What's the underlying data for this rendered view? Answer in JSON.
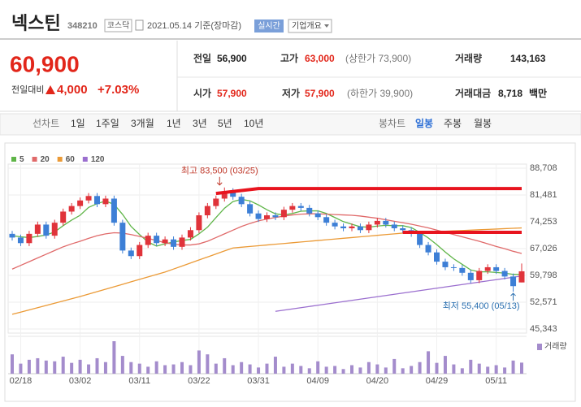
{
  "header": {
    "name": "넥스틴",
    "code": "348210",
    "market": "코스닥",
    "date": "2021.05.14 기준(장마감)",
    "realtime": "실시간",
    "overview": "기업개요"
  },
  "quote": {
    "price": "60,900",
    "change_label": "전일대비",
    "change": "4,000",
    "change_pct": "+7.03%",
    "stats": [
      [
        {
          "label": "전일",
          "value": "56,900"
        },
        {
          "label": "고가",
          "value": "63,000",
          "note": "(상한가 73,900)"
        },
        {
          "label": "거래량",
          "value": "143,163"
        }
      ],
      [
        {
          "label": "시가",
          "value": "57,900"
        },
        {
          "label": "저가",
          "value": "57,900",
          "note": "(하한가 39,900)"
        },
        {
          "label": "거래대금",
          "value": "8,718",
          "unit": "백만"
        }
      ]
    ]
  },
  "tabs": {
    "line_label": "선차트",
    "periods": [
      "1일",
      "1주일",
      "3개월",
      "1년",
      "3년",
      "5년",
      "10년"
    ],
    "candle_label": "봉차트",
    "candle_periods": [
      "일봉",
      "주봉",
      "월봉"
    ]
  },
  "chart_data": {
    "type": "candlestick",
    "up_color": "#e0333a",
    "down_color": "#3d7fd6",
    "grid": true,
    "categories": [
      null,
      "02/18",
      null,
      null,
      null,
      null,
      null,
      null,
      "03/02",
      null,
      null,
      null,
      null,
      null,
      null,
      "03/11",
      null,
      null,
      null,
      null,
      null,
      null,
      "03/22",
      null,
      null,
      null,
      null,
      null,
      null,
      "03/31",
      null,
      null,
      null,
      null,
      null,
      null,
      "04/09",
      null,
      null,
      null,
      null,
      null,
      null,
      "04/20",
      null,
      null,
      null,
      null,
      null,
      null,
      "04/29",
      null,
      null,
      null,
      null,
      null,
      null,
      "05/11",
      null,
      null,
      null
    ],
    "open": [
      71000,
      70000,
      68500,
      71000,
      73500,
      70500,
      74000,
      77000,
      78500,
      80000,
      81200,
      79000,
      80500,
      74000,
      66500,
      65000,
      68000,
      70500,
      68500,
      69500,
      67500,
      70000,
      72000,
      76000,
      78500,
      80500,
      82500,
      81000,
      79000,
      76500,
      75000,
      76000,
      75500,
      77500,
      78500,
      78000,
      76500,
      75500,
      74000,
      73000,
      72500,
      73000,
      72000,
      73500,
      74500,
      73500,
      72500,
      72000,
      71000,
      68000,
      66000,
      63500,
      62000,
      61800,
      60500,
      58500,
      61000,
      62000,
      61000,
      59500,
      57900
    ],
    "high": [
      71800,
      70800,
      71800,
      74300,
      74300,
      74800,
      77800,
      79300,
      80800,
      82000,
      82000,
      81300,
      81300,
      74800,
      67300,
      68800,
      71300,
      71300,
      70300,
      70300,
      70800,
      72800,
      76800,
      79300,
      81300,
      83500,
      83300,
      81800,
      79800,
      77300,
      76800,
      76800,
      78300,
      79300,
      79300,
      78800,
      77300,
      76300,
      74800,
      73800,
      73800,
      73800,
      74300,
      75300,
      75300,
      74300,
      73300,
      72800,
      71800,
      68800,
      66800,
      64300,
      62800,
      62600,
      61300,
      61800,
      62800,
      62800,
      61800,
      60300,
      63000
    ],
    "low": [
      69200,
      67700,
      67700,
      70200,
      69700,
      69700,
      73200,
      76200,
      77700,
      79200,
      78200,
      78200,
      73200,
      65700,
      64200,
      64200,
      67200,
      67700,
      67700,
      66700,
      66700,
      69200,
      71200,
      75200,
      77700,
      79700,
      80200,
      78200,
      75700,
      74200,
      74200,
      74700,
      74700,
      76700,
      77200,
      75700,
      74700,
      73200,
      72200,
      71700,
      71700,
      71200,
      71200,
      72700,
      72700,
      71700,
      71200,
      70200,
      67200,
      65200,
      62700,
      61200,
      61000,
      59700,
      57700,
      57700,
      60200,
      60200,
      58700,
      55400,
      57900
    ],
    "close": [
      70000,
      68500,
      71000,
      73500,
      70500,
      74000,
      77000,
      78500,
      80000,
      81200,
      79000,
      80500,
      74000,
      66500,
      65000,
      68000,
      70500,
      68500,
      69500,
      67500,
      70000,
      72000,
      76000,
      78500,
      80500,
      82500,
      81000,
      79000,
      76500,
      75000,
      76000,
      75500,
      77500,
      78500,
      78000,
      76500,
      75500,
      74000,
      73000,
      72500,
      73000,
      72000,
      73500,
      74500,
      73500,
      72500,
      72000,
      71000,
      68000,
      66000,
      63500,
      62000,
      61800,
      60500,
      58500,
      61000,
      62000,
      61000,
      59500,
      56900,
      60900
    ],
    "moving_averages": [
      {
        "name": "5",
        "color": "#5fb548",
        "values": [
          70500,
          70200,
          70000,
          70300,
          70700,
          71500,
          73200,
          74700,
          76000,
          78140,
          79140,
          79840,
          78940,
          76240,
          73000,
          70800,
          68800,
          67700,
          68300,
          68800,
          69200,
          69500,
          71000,
          72800,
          75400,
          77900,
          79700,
          80300,
          79900,
          78800,
          77500,
          76400,
          76100,
          76500,
          77100,
          77200,
          77200,
          76500,
          75400,
          74300,
          73600,
          72900,
          72800,
          73100,
          73300,
          73200,
          73200,
          72700,
          71400,
          69900,
          68100,
          66100,
          64260,
          62760,
          61260,
          60760,
          60760,
          60600,
          60400,
          60080,
          60060
        ]
      },
      {
        "name": "20",
        "color": "#e06a6a",
        "values": [
          61500,
          62500,
          63500,
          64500,
          65500,
          66500,
          67500,
          68300,
          69000,
          69800,
          70500,
          71000,
          71300,
          71200,
          70800,
          70300,
          69800,
          69200,
          68600,
          68200,
          68000,
          68000,
          68300,
          69000,
          70000,
          71000,
          72000,
          73000,
          73800,
          74500,
          75000,
          75400,
          75800,
          76100,
          76300,
          76400,
          76400,
          76300,
          76200,
          76100,
          76000,
          75800,
          75500,
          75200,
          74800,
          74400,
          74000,
          73600,
          73100,
          72600,
          72000,
          71400,
          70800,
          70200,
          69600,
          69000,
          68300,
          67600,
          67000,
          66300,
          65700
        ]
      },
      {
        "name": "60",
        "color": "#eb9a36",
        "values": [
          49300,
          49900,
          50500,
          51100,
          51700,
          52300,
          52900,
          53500,
          54100,
          54760,
          55420,
          56080,
          56740,
          57400,
          58060,
          58720,
          59380,
          60040,
          60700,
          61510,
          62320,
          63140,
          63950,
          64760,
          65580,
          66390,
          67200,
          67400,
          67600,
          67800,
          68000,
          68200,
          68400,
          68600,
          68800,
          69000,
          69200,
          69400,
          69600,
          69800,
          70000,
          70200,
          70400,
          70600,
          70800,
          71000,
          71200,
          71300,
          71400,
          71500,
          71600,
          71700,
          71800,
          71900,
          72000,
          72100,
          72200,
          72300,
          72400,
          72500,
          72600
        ]
      },
      {
        "name": "120",
        "color": "#9b6fcf",
        "values": [
          null,
          null,
          null,
          null,
          null,
          null,
          null,
          null,
          null,
          null,
          null,
          null,
          null,
          null,
          null,
          null,
          null,
          null,
          null,
          null,
          null,
          null,
          null,
          null,
          null,
          null,
          null,
          null,
          null,
          null,
          null,
          50100,
          50430,
          50760,
          51090,
          51420,
          51750,
          52080,
          52400,
          52730,
          53060,
          53390,
          53720,
          54050,
          54380,
          54700,
          55030,
          55360,
          55690,
          56020,
          56350,
          56680,
          57000,
          57330,
          57660,
          57990,
          58320,
          58650,
          58980,
          59300,
          59630
        ]
      }
    ],
    "volume": {
      "name": "거래량",
      "color": "#a48ccc",
      "values": [
        250000,
        130000,
        180000,
        200000,
        170000,
        160000,
        220000,
        140000,
        180000,
        120000,
        200000,
        150000,
        420000,
        230000,
        150000,
        130000,
        90000,
        160000,
        110000,
        120000,
        150000,
        110000,
        300000,
        250000,
        130000,
        200000,
        110000,
        150000,
        120000,
        80000,
        130000,
        220000,
        90000,
        130000,
        100000,
        70000,
        160000,
        90000,
        100000,
        60000,
        110000,
        80000,
        150000,
        120000,
        80000,
        190000,
        70000,
        100000,
        150000,
        290000,
        140000,
        230000,
        120000,
        70000,
        180000,
        130000,
        90000,
        110000,
        80000,
        170000,
        143163
      ]
    },
    "trend_lines": [
      {
        "color": "#e8141e",
        "x": [
          24,
          29,
          60
        ],
        "values": [
          81900,
          83200,
          83200
        ]
      },
      {
        "color": "#e8141e",
        "x": [
          46,
          60
        ],
        "values": [
          71400,
          71400
        ]
      }
    ],
    "annotations": [
      {
        "text": "최고 83,500 (03/25)",
        "value": 83500,
        "anchor": "high"
      },
      {
        "text": "최저 55,400 (05/13)",
        "value": 55400,
        "anchor": "low"
      }
    ],
    "ylim": [
      45343,
      88708
    ],
    "yticks": [
      {
        "value": 45343,
        "label": "45,343"
      },
      {
        "value": 52571,
        "label": "52,571"
      },
      {
        "value": 59798,
        "label": "59,798"
      },
      {
        "value": 67026,
        "label": "67,026"
      },
      {
        "value": 74253,
        "label": "74,253"
      },
      {
        "value": 81481,
        "label": "81,481"
      },
      {
        "value": 88708,
        "label": "88,708"
      }
    ]
  }
}
